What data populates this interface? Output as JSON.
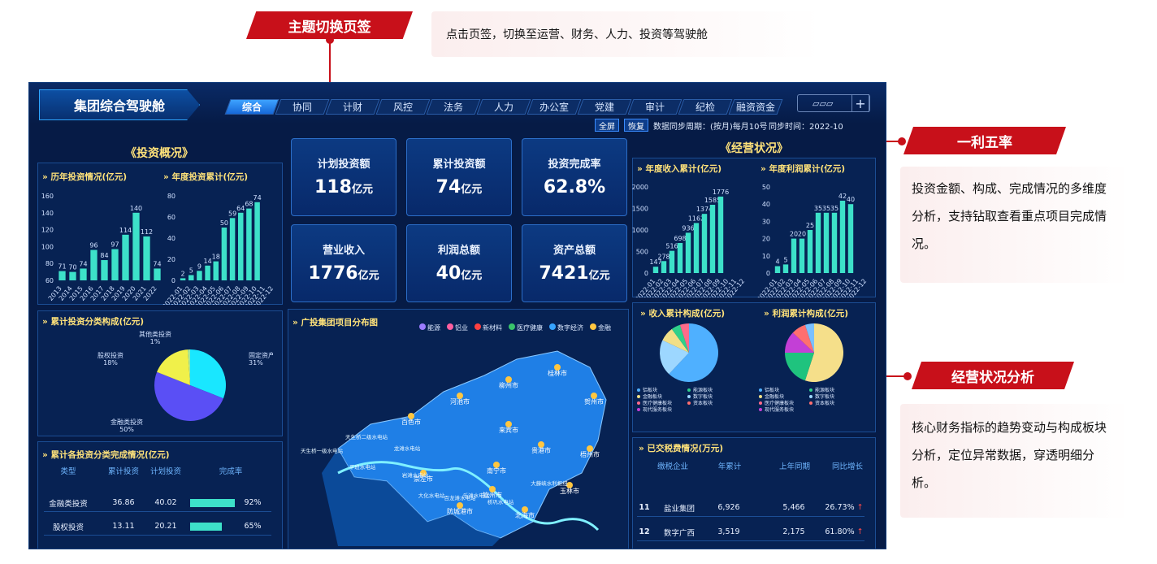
{
  "callouts": {
    "topic_tag": "主题切换页签",
    "topic_desc": "点击页签，切换至运营、财务、人力、投资等驾驶舱",
    "kpi_tag": "一利五率",
    "kpi_desc": "投资金额、构成、完成情况的多维度分析，支持钻取查看重点项目完成情况。",
    "biz_tag": "经营状况分析",
    "biz_desc": "核心财务指标的趋势变动与构成板块分析，定位异常数据，穿透明细分析。"
  },
  "header": {
    "title": "集团综合驾驶舱",
    "tabs": [
      "综合",
      "协同",
      "计财",
      "风控",
      "法务",
      "人力",
      "办公室",
      "党建",
      "审计",
      "纪检",
      "融资资金"
    ],
    "fullscreen": "全屏",
    "restore": "恢复",
    "sync_period": "数据同步周期：(按月)每月10号",
    "sync_time": "同步时间：2022-10"
  },
  "invest": {
    "section": "《投资概况》",
    "hist_title": "历年投资情况(亿元)",
    "hist_chart": {
      "type": "bar",
      "categories": [
        "2013",
        "2014",
        "2015",
        "2016",
        "2017",
        "2018",
        "2019",
        "2020",
        "2021",
        "2022"
      ],
      "values": [
        71,
        70,
        74,
        96,
        84,
        97,
        114,
        140,
        112,
        74
      ],
      "ylim": [
        60,
        160
      ],
      "yticks": [
        "60",
        "80",
        "100",
        "120",
        "140",
        "160"
      ]
    },
    "ann_title": "年度投资累计(亿元)",
    "ann_chart": {
      "type": "bar",
      "categories": [
        "2022-01",
        "2022-02",
        "2022-03",
        "2022-04",
        "2022-05",
        "2022-06",
        "2022-07",
        "2022-08",
        "2022-09",
        "2022-10",
        "2022-11",
        "2022-12"
      ],
      "values": [
        2,
        5,
        9,
        14,
        18,
        50,
        59,
        64,
        68,
        74,
        null,
        null
      ],
      "ylim": [
        0,
        80
      ],
      "yticks": [
        "0",
        "20",
        "40",
        "60",
        "80"
      ]
    },
    "class_title": "累计投资分类构成(亿元)",
    "class_chart": {
      "type": "pie",
      "slices": [
        {
          "name": "固定资产投资",
          "pct": "31%",
          "value": 31,
          "color": "#19e7ff"
        },
        {
          "name": "金融类投资",
          "pct": "50%",
          "value": 50,
          "color": "#5a4ff5"
        },
        {
          "name": "股权投资",
          "pct": "18%",
          "value": 18,
          "color": "#f0f04a"
        },
        {
          "name": "其他类投资",
          "pct": "1%",
          "value": 1,
          "color": "#9fe8a0"
        }
      ]
    },
    "comp_title": "累计各投资分类完成情况(亿元)",
    "comp_headers": [
      "类型",
      "累计投资",
      "计划投资",
      "完成率"
    ],
    "comp_rows": [
      {
        "type": "金融类投资",
        "acc": "36.86",
        "plan": "40.02",
        "rate": "92%",
        "pct": 92
      },
      {
        "type": "股权投资",
        "acc": "13.11",
        "plan": "20.21",
        "rate": "65%",
        "pct": 65
      }
    ]
  },
  "kpis": [
    {
      "label": "计划投资额",
      "value": "118",
      "unit": "亿元"
    },
    {
      "label": "累计投资额",
      "value": "74",
      "unit": "亿元"
    },
    {
      "label": "投资完成率",
      "value": "62.8%",
      "unit": ""
    },
    {
      "label": "营业收入",
      "value": "1776",
      "unit": "亿元"
    },
    {
      "label": "利润总额",
      "value": "40",
      "unit": "亿元"
    },
    {
      "label": "资产总额",
      "value": "7421",
      "unit": "亿元"
    }
  ],
  "map": {
    "title": "广投集团项目分布图",
    "legend": [
      "能源",
      "铝业",
      "新材料",
      "医疗健康",
      "数字经济",
      "金融"
    ],
    "cities": [
      "桂林市",
      "柳州市",
      "贺州市",
      "河池市",
      "百色市",
      "来宾市",
      "贵港市",
      "梧州市",
      "南宁市",
      "崇左市",
      "钦州市",
      "玉林市",
      "防城港市",
      "北海市"
    ],
    "stations": [
      "天生桥一级水电站",
      "天生桥二级水电站",
      "龙滩水电站",
      "平班水电站",
      "岩滩水电站",
      "大化水电站",
      "百龙滩水电站",
      "乐滩水电站",
      "桥巩水电站",
      "大藤峡水利枢纽"
    ]
  },
  "biz": {
    "section": "《经营状况》",
    "rev_title": "年度收入累计(亿元)",
    "rev_chart": {
      "type": "bar",
      "categories": [
        "2022-01",
        "2022-02",
        "2022-03",
        "2022-04",
        "2022-05",
        "2022-06",
        "2022-07",
        "2022-08",
        "2022-09",
        "2022-10",
        "2022-11",
        "2022-12"
      ],
      "values": [
        147,
        278,
        516,
        698,
        936,
        1162,
        1374,
        1585,
        1776,
        null,
        null,
        null
      ],
      "ylim": [
        0,
        2000
      ],
      "yticks": [
        "0",
        "500",
        "1000",
        "1500",
        "2000"
      ]
    },
    "prof_title": "年度利润累计(亿元)",
    "prof_chart": {
      "type": "bar",
      "categories": [
        "2022-01",
        "2022-02",
        "2022-03",
        "2022-04",
        "2022-05",
        "2022-06",
        "2022-07",
        "2022-08",
        "2022-09",
        "2022-10",
        "2022-11",
        "2022-12"
      ],
      "values": [
        4,
        5,
        20,
        20,
        25,
        35,
        35,
        35,
        42,
        40,
        null,
        null
      ],
      "ylim": [
        0,
        50
      ],
      "yticks": [
        "0",
        "10",
        "20",
        "30",
        "40",
        "50"
      ]
    },
    "rev_comp_title": "收入累计构成(亿元)",
    "prof_comp_title": "利润累计构成(亿元)",
    "pie_legend": [
      "铝板块",
      "能源板块",
      "金融板块",
      "数字板块",
      "医疗健康板块",
      "资本板块",
      "现代服务板块"
    ],
    "tax_title": "已交税费情况(万元)",
    "tax_headers": [
      "缴税企业",
      "年累计",
      "上年同期",
      "同比增长"
    ],
    "tax_rows": [
      {
        "no": "11",
        "name": "盐业集团",
        "acc": "6,926",
        "prev": "5,466",
        "growth": "26.73%",
        "arrow": "↑"
      },
      {
        "no": "12",
        "name": "数字广西",
        "acc": "3,519",
        "prev": "2,175",
        "growth": "61.80%",
        "arrow": "↑"
      }
    ]
  }
}
